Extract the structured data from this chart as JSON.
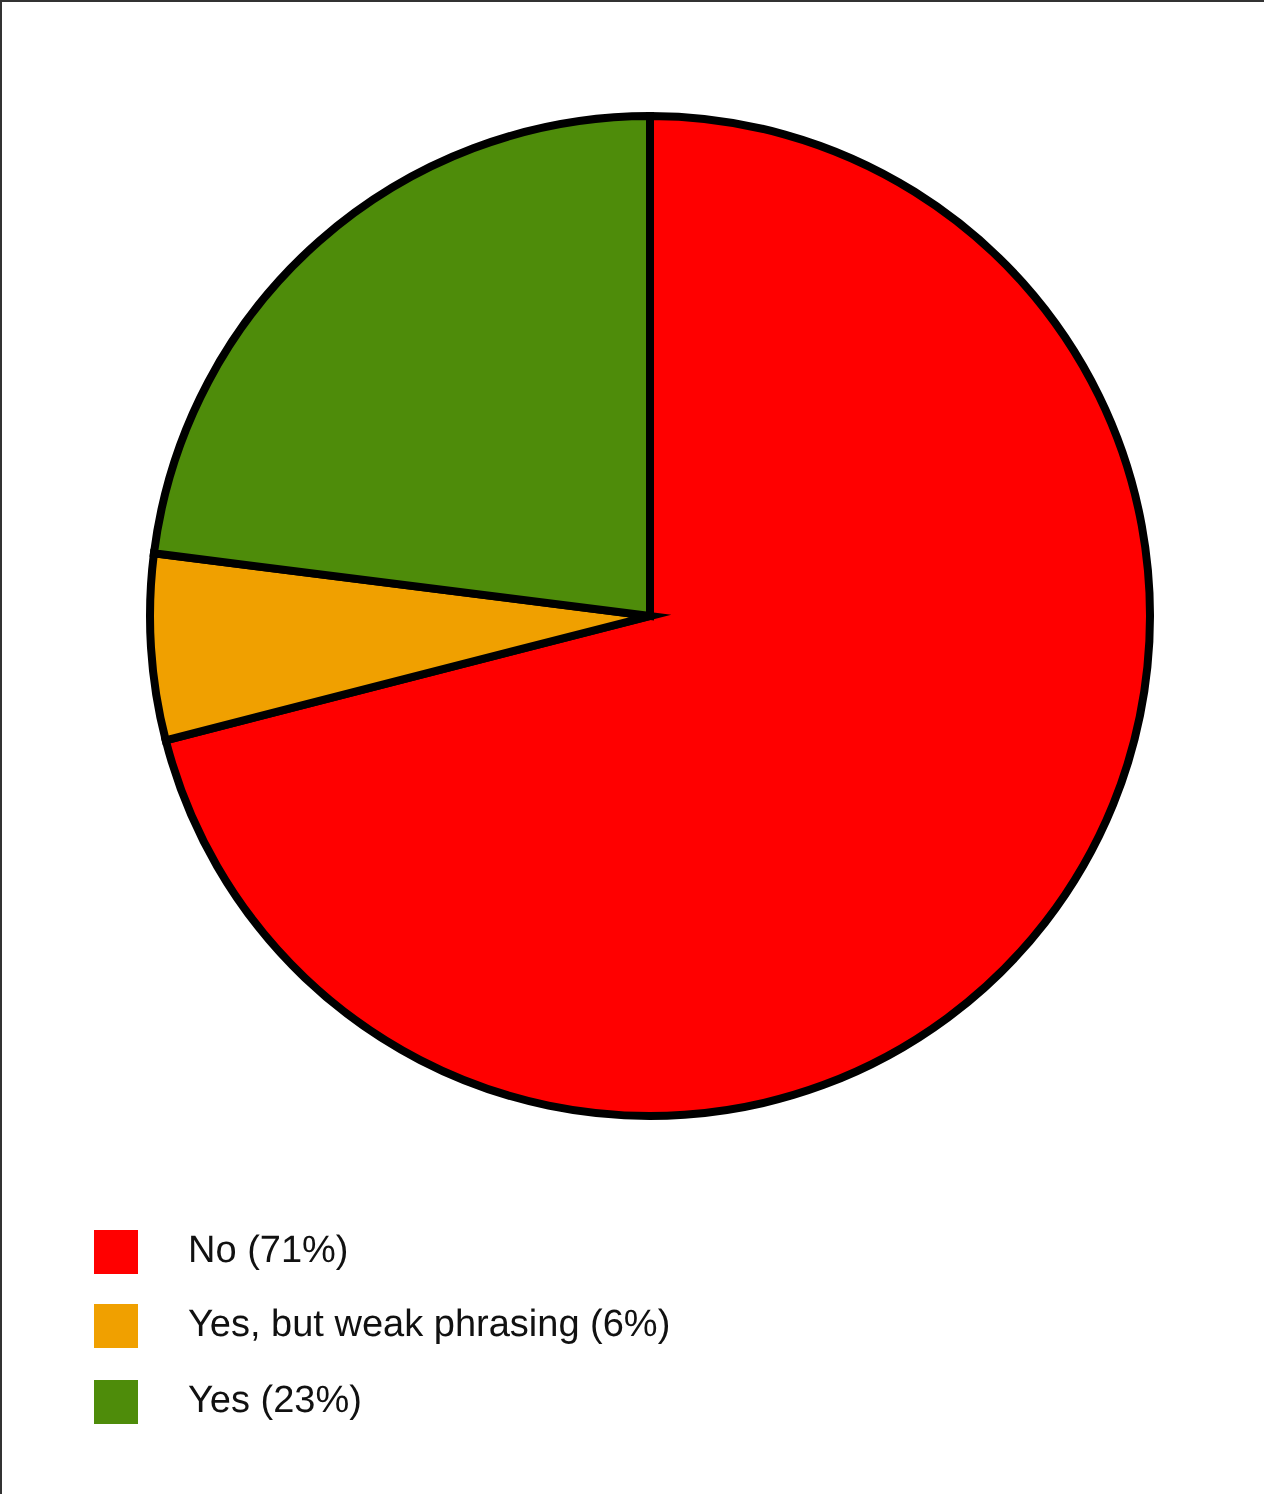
{
  "chart_data": {
    "type": "pie",
    "categories": [
      "No (71%)",
      "Yes, but weak phrasing (6%)",
      "Yes (23%)"
    ],
    "values": [
      71,
      6,
      23
    ],
    "colors": [
      "#ff0000",
      "#f0a000",
      "#4e8c0a"
    ],
    "legend": "bottom left"
  }
}
